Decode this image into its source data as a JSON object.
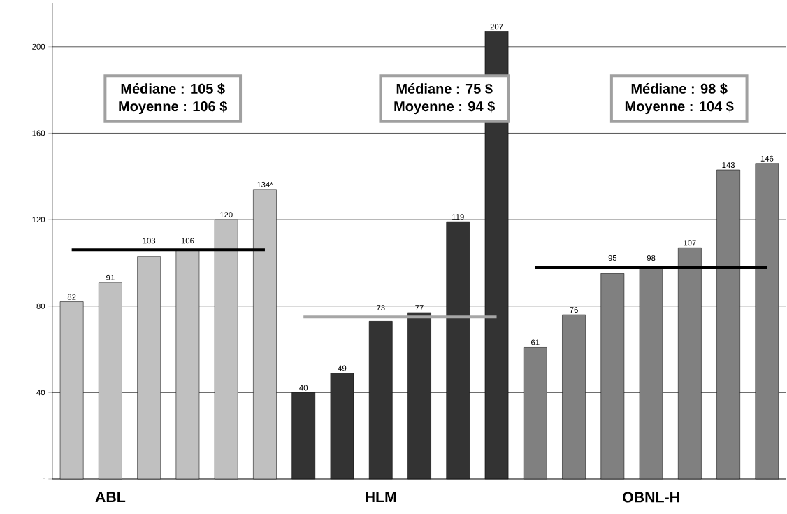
{
  "chart_data": {
    "type": "bar",
    "categories": [
      null,
      "ABL",
      null,
      null,
      null,
      null,
      null,
      null,
      "HLM",
      null,
      null,
      null,
      null,
      null,
      null,
      "OBNL-H",
      null,
      null,
      null
    ],
    "series": [
      {
        "values": [
          82,
          91,
          103,
          106,
          120,
          134,
          40,
          49,
          73,
          77,
          119,
          207,
          61,
          76,
          95,
          98,
          107,
          143,
          146
        ],
        "colors": [
          "#c0c0c0",
          "#c0c0c0",
          "#c0c0c0",
          "#c0c0c0",
          "#c0c0c0",
          "#c0c0c0",
          "#333333",
          "#333333",
          "#333333",
          "#333333",
          "#333333",
          "#333333",
          "#808080",
          "#808080",
          "#808080",
          "#808080",
          "#808080",
          "#808080",
          "#808080"
        ],
        "value_labels": [
          "82",
          "91",
          "103",
          "106",
          "120",
          "134*",
          "40",
          "49",
          "73",
          "77",
          "119",
          "207",
          "61",
          "76",
          "95",
          "98",
          "107",
          "143",
          "146"
        ]
      },
      {
        "type": "line",
        "color": "#000000",
        "values": [
          106,
          106,
          106,
          106,
          106,
          106,
          null,
          null,
          null,
          null,
          null,
          null,
          null,
          null,
          null,
          null,
          null,
          null,
          null
        ]
      },
      {
        "type": "line",
        "color": "#a6a6a6",
        "values": [
          null,
          null,
          null,
          null,
          null,
          null,
          75,
          75,
          75,
          75,
          75,
          75,
          null,
          null,
          null,
          null,
          null,
          null,
          null
        ]
      },
      {
        "type": "line",
        "color": "#000000",
        "values": [
          null,
          null,
          null,
          null,
          null,
          null,
          null,
          null,
          null,
          null,
          null,
          null,
          98,
          98,
          98,
          98,
          98,
          98,
          98
        ]
      }
    ],
    "ylim": [
      0,
      220
    ],
    "yticks": [
      {
        "value": 0,
        "label": "-"
      },
      40,
      80,
      120,
      160,
      200
    ],
    "grid": "y",
    "annotations": [
      "Médiane : 105 $",
      "Moyenne : 106 $",
      "Médiane : 75 $",
      "Moyenne : 94 $",
      "Médiane : 98 $",
      "Moyenne : 104 $"
    ]
  }
}
